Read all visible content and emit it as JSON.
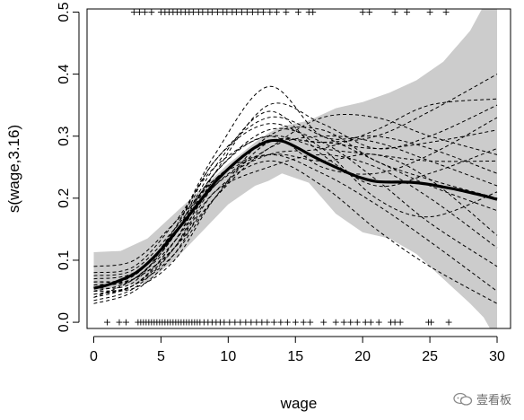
{
  "chart_data": {
    "type": "line",
    "title": "",
    "xlabel": "wage",
    "ylabel": "s(wage,3.16)",
    "xlim": [
      -0.5,
      31.0
    ],
    "ylim": [
      -0.01,
      0.505
    ],
    "x_ticks": [
      0,
      5,
      10,
      15,
      20,
      25,
      30
    ],
    "y_ticks": [
      0.0,
      0.1,
      0.2,
      0.3,
      0.4,
      0.5
    ],
    "x_tick_labels": [
      "0",
      "5",
      "10",
      "15",
      "20",
      "25",
      "30"
    ],
    "y_tick_labels": [
      "0.0",
      "0.1",
      "0.2",
      "0.3",
      "0.4",
      "0.5"
    ],
    "grid": false,
    "legend": "none",
    "fit": {
      "x": [
        0,
        1,
        2,
        3,
        4,
        5,
        6,
        7,
        8,
        9,
        10,
        11,
        12,
        13,
        14,
        15,
        16,
        17,
        18,
        19,
        20,
        21,
        22,
        23,
        24,
        25,
        26,
        27,
        28,
        29,
        30
      ],
      "y": [
        0.055,
        0.06,
        0.068,
        0.078,
        0.095,
        0.117,
        0.143,
        0.17,
        0.198,
        0.225,
        0.247,
        0.266,
        0.282,
        0.292,
        0.292,
        0.283,
        0.271,
        0.26,
        0.25,
        0.24,
        0.232,
        0.227,
        0.226,
        0.226,
        0.225,
        0.222,
        0.218,
        0.214,
        0.209,
        0.204,
        0.198
      ]
    },
    "band": {
      "x": [
        0,
        2,
        4,
        6,
        8,
        10,
        12,
        13,
        14,
        16,
        18,
        20,
        22,
        24,
        26,
        28,
        29,
        30
      ],
      "upper": [
        0.113,
        0.115,
        0.135,
        0.175,
        0.215,
        0.255,
        0.29,
        0.305,
        0.316,
        0.325,
        0.345,
        0.355,
        0.37,
        0.39,
        0.42,
        0.47,
        0.51,
        0.545
      ],
      "lower": [
        0.05,
        0.058,
        0.065,
        0.1,
        0.145,
        0.19,
        0.22,
        0.228,
        0.24,
        0.225,
        0.175,
        0.145,
        0.135,
        0.11,
        0.07,
        0.03,
        0.008,
        -0.03
      ]
    },
    "samples": [
      {
        "x": [
          0,
          3,
          6,
          9,
          13,
          17,
          21,
          25,
          30
        ],
        "y": [
          0.045,
          0.06,
          0.11,
          0.2,
          0.29,
          0.29,
          0.3,
          0.34,
          0.4
        ]
      },
      {
        "x": [
          0,
          3,
          6,
          9,
          13,
          17,
          21,
          25,
          30
        ],
        "y": [
          0.065,
          0.075,
          0.15,
          0.26,
          0.33,
          0.3,
          0.26,
          0.22,
          0.18
        ]
      },
      {
        "x": [
          0,
          3,
          6,
          9,
          13,
          17,
          21,
          25,
          30
        ],
        "y": [
          0.035,
          0.055,
          0.12,
          0.23,
          0.27,
          0.24,
          0.19,
          0.13,
          0.05
        ]
      },
      {
        "x": [
          0,
          3,
          6,
          9,
          13,
          17,
          21,
          25,
          30
        ],
        "y": [
          0.08,
          0.09,
          0.16,
          0.25,
          0.3,
          0.28,
          0.27,
          0.26,
          0.26
        ]
      },
      {
        "x": [
          0,
          3,
          6,
          9,
          13,
          17,
          21,
          25,
          30
        ],
        "y": [
          0.05,
          0.06,
          0.13,
          0.24,
          0.35,
          0.32,
          0.28,
          0.3,
          0.35
        ]
      },
      {
        "x": [
          0,
          3,
          6,
          9,
          13,
          17,
          21,
          25,
          30
        ],
        "y": [
          0.06,
          0.07,
          0.12,
          0.21,
          0.25,
          0.27,
          0.25,
          0.2,
          0.12
        ]
      },
      {
        "x": [
          0,
          3,
          6,
          9,
          13,
          17,
          21,
          25,
          30
        ],
        "y": [
          0.04,
          0.07,
          0.13,
          0.22,
          0.27,
          0.28,
          0.31,
          0.35,
          0.36
        ]
      },
      {
        "x": [
          0,
          3,
          6,
          9,
          13,
          17,
          21,
          25,
          30
        ],
        "y": [
          0.07,
          0.08,
          0.14,
          0.24,
          0.31,
          0.29,
          0.23,
          0.16,
          0.09
        ]
      },
      {
        "x": [
          0,
          3,
          6,
          9,
          13,
          17,
          21,
          25,
          30
        ],
        "y": [
          0.055,
          0.065,
          0.15,
          0.27,
          0.38,
          0.3,
          0.3,
          0.28,
          0.24
        ]
      },
      {
        "x": [
          0,
          3,
          6,
          9,
          13,
          17,
          21,
          25,
          30
        ],
        "y": [
          0.03,
          0.05,
          0.11,
          0.21,
          0.26,
          0.22,
          0.15,
          0.09,
          0.03
        ]
      },
      {
        "x": [
          0,
          3,
          6,
          9,
          13,
          17,
          21,
          25,
          30
        ],
        "y": [
          0.09,
          0.1,
          0.16,
          0.23,
          0.29,
          0.29,
          0.28,
          0.29,
          0.31
        ]
      },
      {
        "x": [
          0,
          3,
          6,
          9,
          13,
          17,
          21,
          25,
          30
        ],
        "y": [
          0.05,
          0.055,
          0.1,
          0.2,
          0.3,
          0.31,
          0.26,
          0.23,
          0.2
        ]
      },
      {
        "x": [
          0,
          3,
          6,
          9,
          13,
          17,
          21,
          25,
          30
        ],
        "y": [
          0.06,
          0.07,
          0.14,
          0.25,
          0.34,
          0.27,
          0.22,
          0.24,
          0.28
        ]
      },
      {
        "x": [
          0,
          3,
          6,
          9,
          13,
          17,
          21,
          25,
          30
        ],
        "y": [
          0.04,
          0.06,
          0.12,
          0.22,
          0.28,
          0.33,
          0.33,
          0.3,
          0.27
        ]
      },
      {
        "x": [
          0,
          3,
          6,
          9,
          13,
          17,
          21,
          25,
          30
        ],
        "y": [
          0.075,
          0.085,
          0.15,
          0.23,
          0.27,
          0.26,
          0.27,
          0.23,
          0.14
        ]
      },
      {
        "x": [
          0,
          3,
          6,
          9,
          13,
          17,
          21,
          25,
          30
        ],
        "y": [
          0.05,
          0.07,
          0.14,
          0.26,
          0.32,
          0.28,
          0.2,
          0.17,
          0.21
        ]
      },
      {
        "x": [
          0,
          3,
          6,
          9,
          13,
          17,
          21,
          25,
          30
        ],
        "y": [
          0.065,
          0.07,
          0.12,
          0.2,
          0.28,
          0.3,
          0.29,
          0.26,
          0.22
        ]
      },
      {
        "x": [
          0,
          3,
          6,
          9,
          13,
          17,
          21,
          25,
          30
        ],
        "y": [
          0.045,
          0.06,
          0.13,
          0.24,
          0.3,
          0.25,
          0.24,
          0.27,
          0.33
        ]
      }
    ],
    "rug_top": [
      3.0,
      3.4,
      3.8,
      4.3,
      5.0,
      5.3,
      5.6,
      5.9,
      6.2,
      6.5,
      6.8,
      7.1,
      7.4,
      7.8,
      8.1,
      8.5,
      8.8,
      9.2,
      9.6,
      9.9,
      10.3,
      10.6,
      11.0,
      11.4,
      11.8,
      12.2,
      12.6,
      13.1,
      13.6,
      14.3,
      15.2,
      16.0,
      16.3,
      20.0,
      20.5,
      22.4,
      23.3,
      25.0,
      26.2
    ],
    "rug_bottom": [
      1.0,
      1.9,
      2.4,
      3.3,
      3.5,
      3.7,
      3.9,
      4.1,
      4.3,
      4.5,
      4.7,
      4.9,
      5.1,
      5.3,
      5.5,
      5.7,
      5.9,
      6.1,
      6.3,
      6.5,
      6.7,
      6.9,
      7.1,
      7.3,
      7.5,
      7.7,
      7.9,
      8.2,
      8.5,
      8.8,
      9.1,
      9.4,
      9.7,
      10.1,
      10.5,
      10.9,
      11.3,
      11.7,
      12.1,
      12.5,
      12.9,
      13.4,
      13.9,
      14.4,
      15.0,
      15.6,
      16.1,
      17.1,
      18.0,
      18.6,
      19.1,
      19.6,
      20.2,
      20.6,
      21.2,
      22.1,
      22.4,
      22.8,
      24.9,
      25.1,
      26.4
    ]
  },
  "watermark": {
    "text": "壹看板"
  }
}
